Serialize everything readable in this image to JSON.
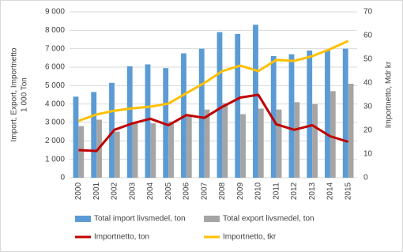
{
  "chart_data": {
    "type": "bar-line",
    "ylabel": [
      "Import, Export, Importnetto",
      "1 000 Ton"
    ],
    "y2label": "Importnetto, Mdr kr",
    "categories": [
      "2000",
      "2001",
      "2002",
      "2003",
      "2004",
      "2005",
      "2006",
      "2007",
      "2008",
      "2009",
      "2010",
      "2011",
      "2012",
      "2013",
      "2014",
      "2015"
    ],
    "series": [
      {
        "name": "Total import livsmedel, ton",
        "color": "#5b9bd5",
        "kind": "bar",
        "values": [
          4400,
          4650,
          5150,
          6050,
          6150,
          5950,
          6750,
          7000,
          7900,
          7800,
          8300,
          6600,
          6700,
          6900,
          6950,
          7000
        ]
      },
      {
        "name": "Total export livsmedel, ton",
        "color": "#a5a5a5",
        "kind": "bar",
        "values": [
          2800,
          3150,
          2500,
          3000,
          2950,
          3050,
          3350,
          3700,
          4050,
          3450,
          3750,
          3700,
          4100,
          4000,
          4700,
          5100
        ]
      },
      {
        "name": "Importnetto, ton",
        "color": "#c00000",
        "kind": "line",
        "values": [
          1500,
          1450,
          2600,
          2950,
          3200,
          2850,
          3400,
          3250,
          3850,
          4350,
          4500,
          2900,
          2600,
          2850,
          2250,
          1950
        ]
      },
      {
        "name": "Importnetto, tkr",
        "color": "#ffc000",
        "kind": "line",
        "axis": "y2",
        "values": [
          24,
          26.7,
          28.3,
          29.3,
          30,
          31.3,
          35.7,
          40,
          45,
          47.3,
          45,
          49.7,
          49.3,
          51.3,
          54.3,
          57.7
        ]
      }
    ],
    "ylim": [
      0,
      9000
    ],
    "yticks": [
      0,
      {
        "value": 1000,
        "label": "1 000"
      },
      {
        "value": 2000,
        "label": "2 000"
      },
      {
        "value": 3000,
        "label": "3 000"
      },
      {
        "value": 4000,
        "label": "4 000"
      },
      {
        "value": 5000,
        "label": "5 000"
      },
      {
        "value": 6000,
        "label": "6 000"
      },
      {
        "value": 7000,
        "label": "7 000"
      },
      {
        "value": 8000,
        "label": "8 000"
      },
      {
        "value": 9000,
        "label": "9 000"
      }
    ],
    "y2lim": [
      0,
      70
    ],
    "y2ticks": [
      0,
      10,
      20,
      30,
      40,
      50,
      60,
      70
    ],
    "grid": true,
    "legend": "bottom"
  }
}
